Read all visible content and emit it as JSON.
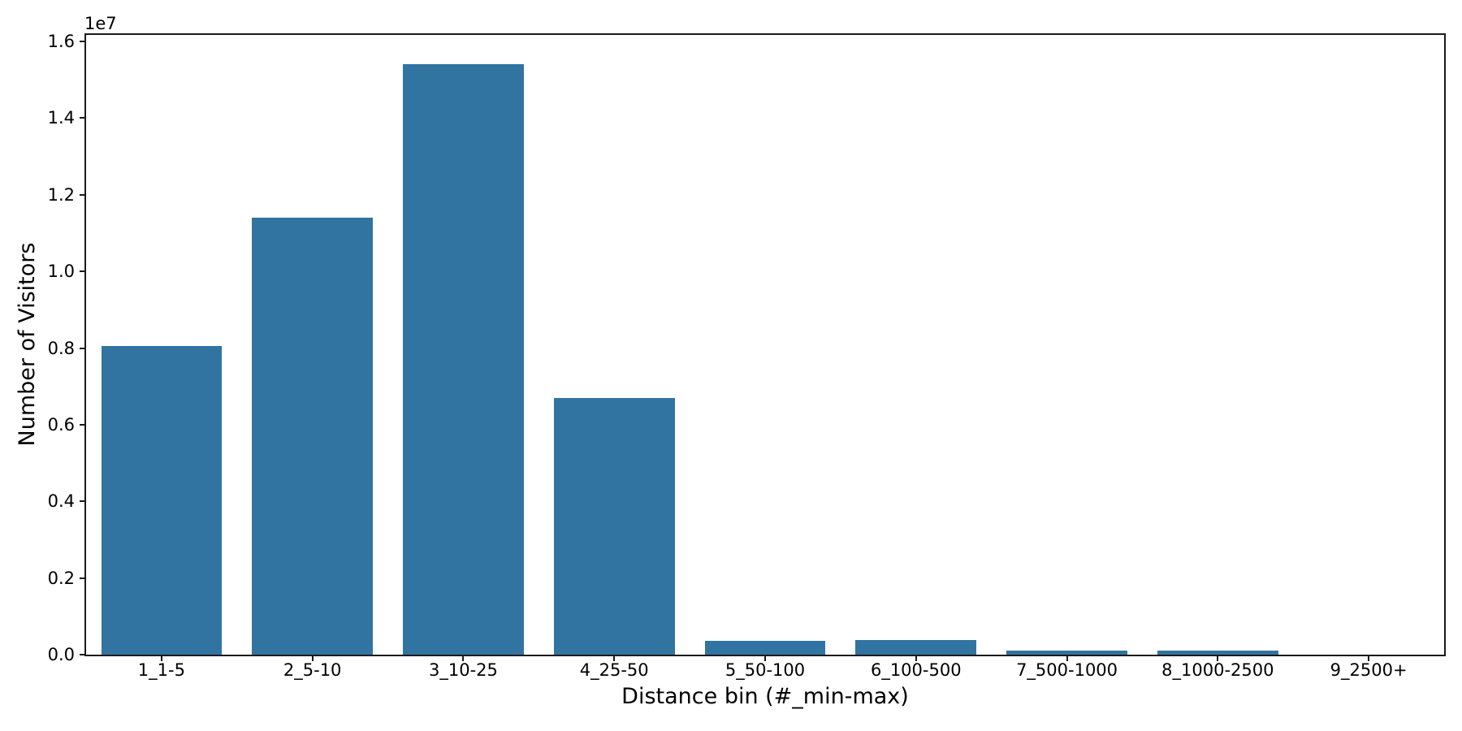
{
  "figure": {
    "background": "#ffffff",
    "bar_color": "#3274a1",
    "axis_color": "#1a1a1a",
    "text_color": "#000000"
  },
  "chart_data": {
    "type": "bar",
    "title": "",
    "xlabel": "Distance bin (#_min-max)",
    "ylabel": "Number of Visitors",
    "y_offset_label": "1e7",
    "categories": [
      "1_1-5",
      "2_5-10",
      "3_10-25",
      "4_25-50",
      "5_50-100",
      "6_100-500",
      "7_500-1000",
      "8_1000-2500",
      "9_2500+"
    ],
    "values": [
      8050000,
      11400000,
      15400000,
      6700000,
      360000,
      390000,
      100000,
      110000,
      10000
    ],
    "ylim": [
      0,
      16170000
    ],
    "ytick_values": [
      0,
      2000000,
      4000000,
      6000000,
      8000000,
      10000000,
      12000000,
      14000000,
      16000000
    ],
    "ytick_labels": [
      "0.0",
      "0.2",
      "0.4",
      "0.6",
      "0.8",
      "1.0",
      "1.2",
      "1.4",
      "1.6"
    ],
    "grid": false,
    "legend": "none",
    "bar_rel_width": 0.8
  }
}
